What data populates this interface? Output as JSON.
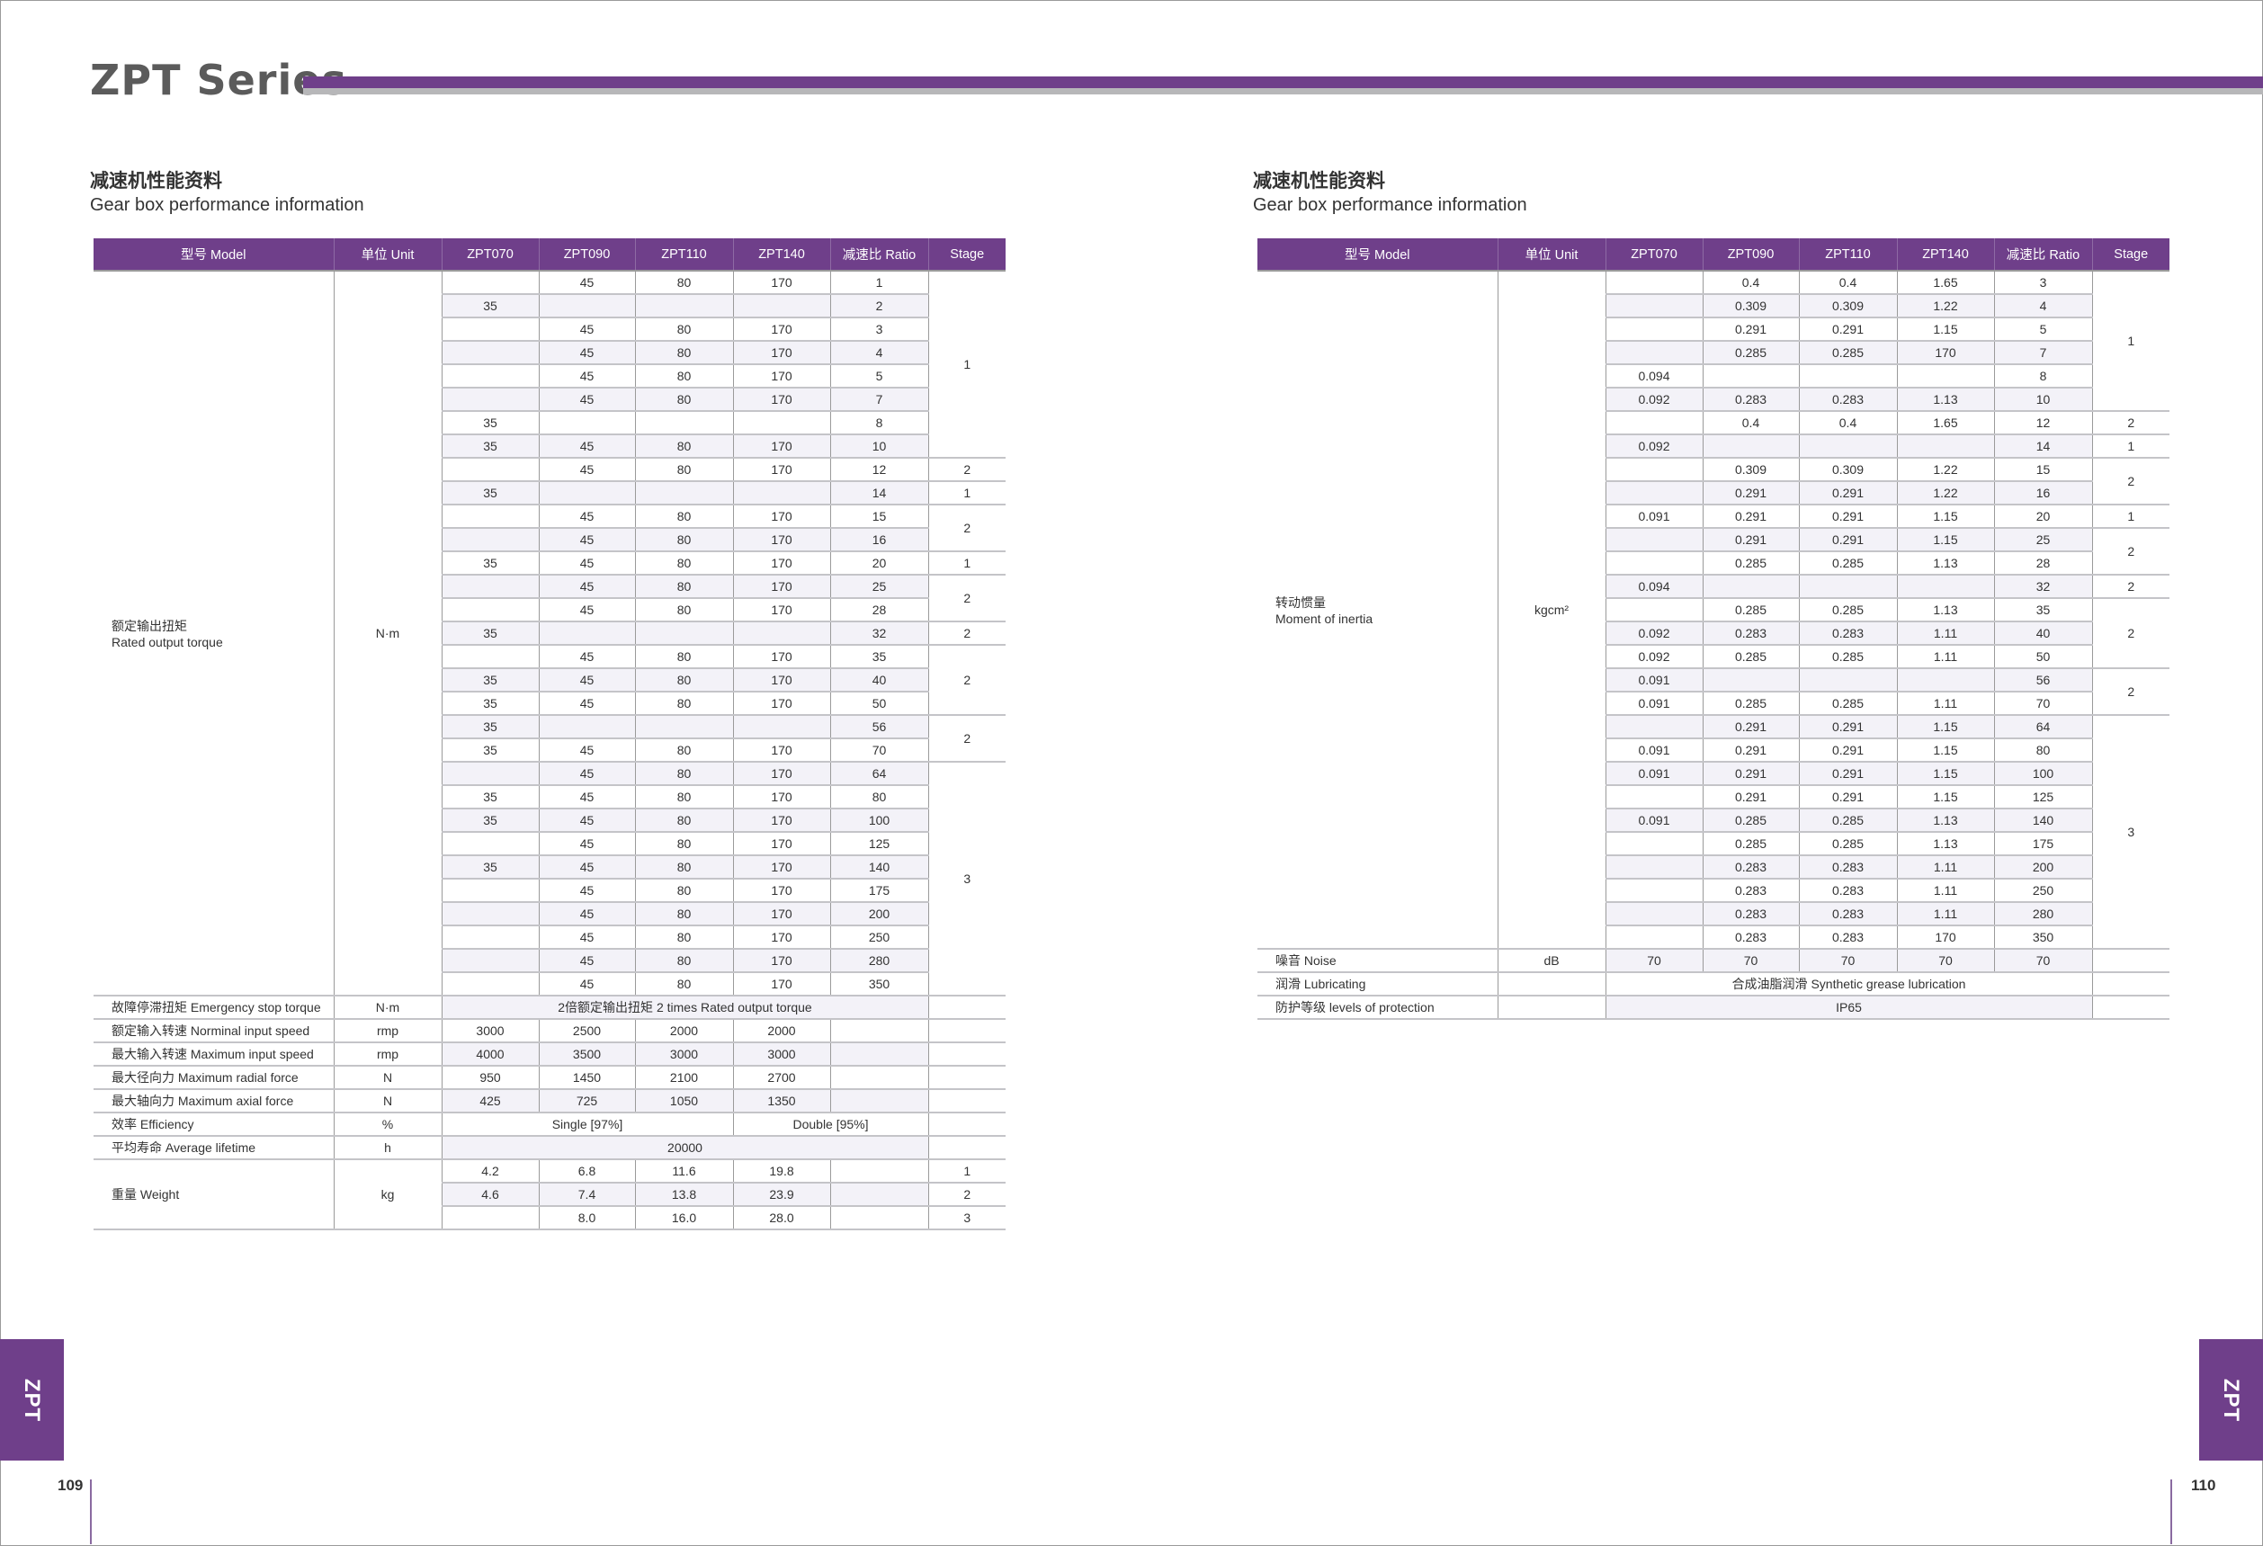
{
  "header": {
    "title": "ZPT Series"
  },
  "colors": {
    "accent": "#6f3f8a",
    "alt_row": "#f3f2f8",
    "rule_gray": "#b7b7b9"
  },
  "left_page": {
    "heading_cn": "减速机性能资料",
    "heading_en": "Gear box performance information",
    "page_number": "109",
    "side_tab": "ZPT",
    "table": {
      "columns": [
        "型号 Model",
        "单位 Unit",
        "ZPT070",
        "ZPT090",
        "ZPT110",
        "ZPT140",
        "减速比 Ratio",
        "Stage"
      ],
      "main": {
        "label_cn": "额定输出扭矩",
        "label_en": "Rated output torque",
        "unit": "N·m",
        "rows": [
          [
            "",
            "45",
            "80",
            "170",
            "1"
          ],
          [
            "35",
            "",
            "",
            "",
            "2"
          ],
          [
            "",
            "45",
            "80",
            "170",
            "3"
          ],
          [
            "",
            "45",
            "80",
            "170",
            "4"
          ],
          [
            "",
            "45",
            "80",
            "170",
            "5"
          ],
          [
            "",
            "45",
            "80",
            "170",
            "7"
          ],
          [
            "35",
            "",
            "",
            "",
            "8"
          ],
          [
            "35",
            "45",
            "80",
            "170",
            "10"
          ],
          [
            "",
            "45",
            "80",
            "170",
            "12"
          ],
          [
            "35",
            "",
            "",
            "",
            "14"
          ],
          [
            "",
            "45",
            "80",
            "170",
            "15"
          ],
          [
            "",
            "45",
            "80",
            "170",
            "16"
          ],
          [
            "35",
            "45",
            "80",
            "170",
            "20"
          ],
          [
            "",
            "45",
            "80",
            "170",
            "25"
          ],
          [
            "",
            "45",
            "80",
            "170",
            "28"
          ],
          [
            "35",
            "",
            "",
            "",
            "32"
          ],
          [
            "",
            "45",
            "80",
            "170",
            "35"
          ],
          [
            "35",
            "45",
            "80",
            "170",
            "40"
          ],
          [
            "35",
            "45",
            "80",
            "170",
            "50"
          ],
          [
            "35",
            "",
            "",
            "",
            "56"
          ],
          [
            "35",
            "45",
            "80",
            "170",
            "70"
          ],
          [
            "",
            "45",
            "80",
            "170",
            "64"
          ],
          [
            "35",
            "45",
            "80",
            "170",
            "80"
          ],
          [
            "35",
            "45",
            "80",
            "170",
            "100"
          ],
          [
            "",
            "45",
            "80",
            "170",
            "125"
          ],
          [
            "35",
            "45",
            "80",
            "170",
            "140"
          ],
          [
            "",
            "45",
            "80",
            "170",
            "175"
          ],
          [
            "",
            "45",
            "80",
            "170",
            "200"
          ],
          [
            "",
            "45",
            "80",
            "170",
            "250"
          ],
          [
            "",
            "45",
            "80",
            "170",
            "280"
          ],
          [
            "",
            "45",
            "80",
            "170",
            "350"
          ]
        ],
        "stages": [
          {
            "value": "1",
            "span": 8
          },
          {
            "value": "2",
            "span": 1
          },
          {
            "value": "1",
            "span": 1
          },
          {
            "value": "2",
            "span": 2
          },
          {
            "value": "1",
            "span": 1
          },
          {
            "value": "2",
            "span": 2
          },
          {
            "value": "2",
            "span": 1
          },
          {
            "value": "2",
            "span": 3
          },
          {
            "value": "2",
            "span": 2
          },
          {
            "value": "3",
            "span": 10
          }
        ]
      },
      "other_rows": [
        {
          "label": "故障停滞扭矩 Emergency stop torque",
          "unit": "N·m",
          "cells": [
            {
              "text": "2倍额定输出扭矩  2 times Rated output torque",
              "span": 5
            }
          ],
          "stage": ""
        },
        {
          "label": "额定输入转速 Norminal input speed",
          "unit": "rmp",
          "cells": [
            {
              "text": "3000",
              "span": 1
            },
            {
              "text": "2500",
              "span": 1
            },
            {
              "text": "2000",
              "span": 1
            },
            {
              "text": "2000",
              "span": 1
            },
            {
              "text": "",
              "span": 1
            }
          ],
          "stage": ""
        },
        {
          "label": "最大输入转速 Maximum input speed",
          "unit": "rmp",
          "cells": [
            {
              "text": "4000",
              "span": 1
            },
            {
              "text": "3500",
              "span": 1
            },
            {
              "text": "3000",
              "span": 1
            },
            {
              "text": "3000",
              "span": 1
            },
            {
              "text": "",
              "span": 1
            }
          ],
          "stage": ""
        },
        {
          "label": "最大径向力 Maximum radial force",
          "unit": "N",
          "cells": [
            {
              "text": "950",
              "span": 1
            },
            {
              "text": "1450",
              "span": 1
            },
            {
              "text": "2100",
              "span": 1
            },
            {
              "text": "2700",
              "span": 1
            },
            {
              "text": "",
              "span": 1
            }
          ],
          "stage": ""
        },
        {
          "label": "最大轴向力 Maximum axial force",
          "unit": "N",
          "cells": [
            {
              "text": "425",
              "span": 1
            },
            {
              "text": "725",
              "span": 1
            },
            {
              "text": "1050",
              "span": 1
            },
            {
              "text": "1350",
              "span": 1
            },
            {
              "text": "",
              "span": 1
            }
          ],
          "stage": ""
        },
        {
          "label": "效率 Efficiency",
          "unit": "%",
          "cells": [
            {
              "text": "Single [97%]",
              "span": 3
            },
            {
              "text": "Double [95%]",
              "span": 2
            }
          ],
          "stage": ""
        },
        {
          "label": "平均寿命 Average lifetime",
          "unit": "h",
          "cells": [
            {
              "text": "20000",
              "span": 5
            }
          ],
          "stage": ""
        }
      ],
      "weight": {
        "label": "重量 Weight",
        "unit": "kg",
        "rows": [
          [
            "4.2",
            "6.8",
            "11.6",
            "19.8",
            "",
            "1"
          ],
          [
            "4.6",
            "7.4",
            "13.8",
            "23.9",
            "",
            "2"
          ],
          [
            "",
            "8.0",
            "16.0",
            "28.0",
            "",
            "3"
          ]
        ]
      }
    }
  },
  "right_page": {
    "heading_cn": "减速机性能资料",
    "heading_en": "Gear box performance information",
    "page_number": "110",
    "side_tab": "ZPT",
    "table": {
      "columns": [
        "型号 Model",
        "单位 Unit",
        "ZPT070",
        "ZPT090",
        "ZPT110",
        "ZPT140",
        "减速比 Ratio",
        "Stage"
      ],
      "main": {
        "label_cn": "转动惯量",
        "label_en": "Moment of inertia",
        "unit": "kgcm²",
        "rows": [
          [
            "",
            "0.4",
            "0.4",
            "1.65",
            "3"
          ],
          [
            "",
            "0.309",
            "0.309",
            "1.22",
            "4"
          ],
          [
            "",
            "0.291",
            "0.291",
            "1.15",
            "5"
          ],
          [
            "",
            "0.285",
            "0.285",
            "170",
            "7"
          ],
          [
            "0.094",
            "",
            "",
            "",
            "8"
          ],
          [
            "0.092",
            "0.283",
            "0.283",
            "1.13",
            "10"
          ],
          [
            "",
            "0.4",
            "0.4",
            "1.65",
            "12"
          ],
          [
            "0.092",
            "",
            "",
            "",
            "14"
          ],
          [
            "",
            "0.309",
            "0.309",
            "1.22",
            "15"
          ],
          [
            "",
            "0.291",
            "0.291",
            "1.22",
            "16"
          ],
          [
            "0.091",
            "0.291",
            "0.291",
            "1.15",
            "20"
          ],
          [
            "",
            "0.291",
            "0.291",
            "1.15",
            "25"
          ],
          [
            "",
            "0.285",
            "0.285",
            "1.13",
            "28"
          ],
          [
            "0.094",
            "",
            "",
            "",
            "32"
          ],
          [
            "",
            "0.285",
            "0.285",
            "1.13",
            "35"
          ],
          [
            "0.092",
            "0.283",
            "0.283",
            "1.11",
            "40"
          ],
          [
            "0.092",
            "0.285",
            "0.285",
            "1.11",
            "50"
          ],
          [
            "0.091",
            "",
            "",
            "",
            "56"
          ],
          [
            "0.091",
            "0.285",
            "0.285",
            "1.11",
            "70"
          ],
          [
            "",
            "0.291",
            "0.291",
            "1.15",
            "64"
          ],
          [
            "0.091",
            "0.291",
            "0.291",
            "1.15",
            "80"
          ],
          [
            "0.091",
            "0.291",
            "0.291",
            "1.15",
            "100"
          ],
          [
            "",
            "0.291",
            "0.291",
            "1.15",
            "125"
          ],
          [
            "0.091",
            "0.285",
            "0.285",
            "1.13",
            "140"
          ],
          [
            "",
            "0.285",
            "0.285",
            "1.13",
            "175"
          ],
          [
            "",
            "0.283",
            "0.283",
            "1.11",
            "200"
          ],
          [
            "",
            "0.283",
            "0.283",
            "1.11",
            "250"
          ],
          [
            "",
            "0.283",
            "0.283",
            "1.11",
            "280"
          ],
          [
            "",
            "0.283",
            "0.283",
            "170",
            "350"
          ]
        ],
        "stages": [
          {
            "value": "1",
            "span": 6
          },
          {
            "value": "2",
            "span": 1
          },
          {
            "value": "1",
            "span": 1
          },
          {
            "value": "2",
            "span": 2
          },
          {
            "value": "1",
            "span": 1
          },
          {
            "value": "2",
            "span": 2
          },
          {
            "value": "2",
            "span": 1
          },
          {
            "value": "2",
            "span": 3
          },
          {
            "value": "2",
            "span": 2
          },
          {
            "value": "3",
            "span": 10
          }
        ]
      },
      "other_rows": [
        {
          "label": "噪音 Noise",
          "unit": "dB",
          "cells": [
            {
              "text": "70",
              "span": 1
            },
            {
              "text": "70",
              "span": 1
            },
            {
              "text": "70",
              "span": 1
            },
            {
              "text": "70",
              "span": 1
            },
            {
              "text": "70",
              "span": 1
            }
          ],
          "stage": ""
        },
        {
          "label": "润滑 Lubricating",
          "unit": "",
          "cells": [
            {
              "text": "合成油脂润滑 Synthetic grease lubrication",
              "span": 5
            }
          ],
          "stage": ""
        },
        {
          "label": "防护等级 levels of protection",
          "unit": "",
          "cells": [
            {
              "text": "IP65",
              "span": 5
            }
          ],
          "stage": ""
        }
      ]
    }
  }
}
